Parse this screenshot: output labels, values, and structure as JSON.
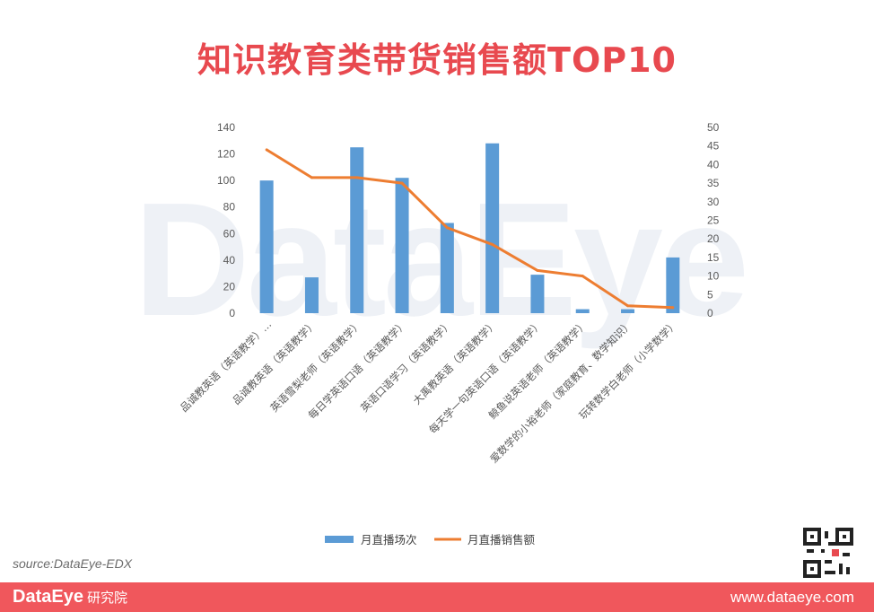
{
  "title": "知识教育类带货销售额TOP10",
  "watermark": "DataEye",
  "source": "source:DataEye-EDX",
  "footer": {
    "brand": "DataEye",
    "brand_sub": "研究院",
    "url": "www.dataeye.com"
  },
  "colors": {
    "title": "#e8494f",
    "bar": "#5b9bd5",
    "line": "#ed7d31",
    "footer": "#f0575c"
  },
  "chart_data": {
    "type": "bar",
    "categories": [
      "品诚教英语（英语教学）…",
      "品诚教英语（英语教学）",
      "英语雪梨老师（英语教学）",
      "每日学英语口语（英语教学）",
      "英语口语学习（英语教学）",
      "大禹教英语（英语教学）",
      "每天学一句英语口语（英语教学）",
      "鲸鱼说英语老师（英语教学）",
      "爱数学的小裕老师（家庭教育、数学知识）",
      "玩转数学白老师（小学数学）"
    ],
    "series": [
      {
        "name": "月直播场次",
        "type": "bar",
        "axis": "left",
        "values": [
          100,
          27,
          125,
          102,
          68,
          128,
          29,
          3,
          3,
          42
        ]
      },
      {
        "name": "月直播销售额",
        "type": "line",
        "axis": "right",
        "values": [
          44,
          36.5,
          36.5,
          35,
          23,
          18.5,
          11.5,
          10,
          2,
          1.5
        ]
      }
    ],
    "left_ticks": [
      "0",
      "20",
      "40",
      "60",
      "80",
      "100",
      "120",
      "140"
    ],
    "right_ticks": [
      "0",
      "5",
      "10",
      "15",
      "20",
      "25",
      "30",
      "35",
      "40",
      "45",
      "50"
    ],
    "ylim_left": [
      0,
      140
    ],
    "ylim_right": [
      0,
      50
    ],
    "legend_position": "bottom"
  }
}
